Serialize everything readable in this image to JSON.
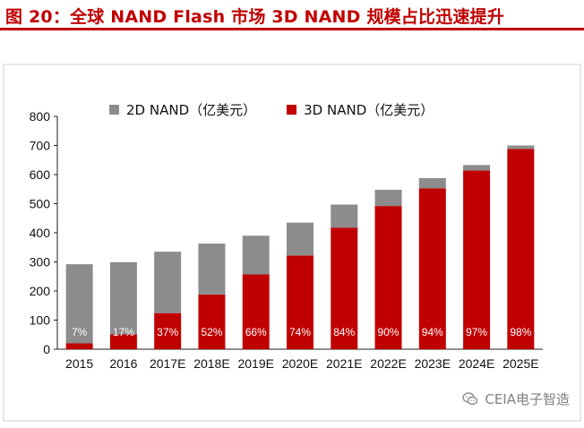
{
  "title": "图 20：全球 NAND Flash 市场 3D NAND 规模占比迅速提升",
  "legend": {
    "series_2d": "2D NAND（亿美元）",
    "series_3d": "3D NAND（亿美元）"
  },
  "watermark": "CEIA电子智造",
  "icons": {
    "watermark": "wechat-icon"
  },
  "colors": {
    "title": "#c00000",
    "bar_2d": "#8c8c8c",
    "bar_3d": "#c00000",
    "axis": "#1f1f1f",
    "percent_label": "#ffffff",
    "frame": "#cfcfcf"
  },
  "chart_data": {
    "type": "bar",
    "categories": [
      "2015",
      "2016",
      "2017E",
      "2018E",
      "2019E",
      "2020E",
      "2021E",
      "2022E",
      "2023E",
      "2024E",
      "2025E"
    ],
    "series": [
      {
        "name": "2D NAND（亿美元）",
        "values": [
          272,
          248,
          211,
          175,
          133,
          113,
          79,
          56,
          35,
          19,
          12
        ]
      },
      {
        "name": "3D NAND（亿美元）",
        "values": [
          20,
          51,
          124,
          188,
          257,
          322,
          418,
          492,
          553,
          614,
          688
        ]
      }
    ],
    "percent_labels": [
      "7%",
      "17%",
      "37%",
      "52%",
      "66%",
      "74%",
      "84%",
      "90%",
      "94%",
      "97%",
      "98%"
    ],
    "ylim": [
      0,
      800
    ],
    "yticks": [
      0,
      100,
      200,
      300,
      400,
      500,
      600,
      700,
      800
    ],
    "stacked": true,
    "legend_position": "top"
  }
}
